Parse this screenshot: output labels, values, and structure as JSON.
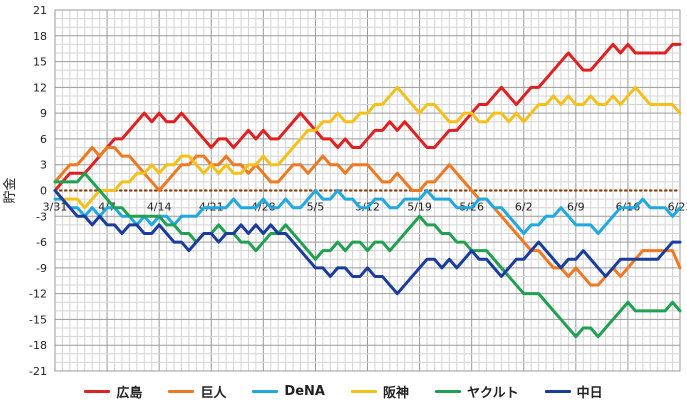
{
  "chart_data": {
    "type": "line",
    "ylabel": "貯金",
    "ylim": [
      -21,
      21
    ],
    "yticks": [
      21,
      18,
      15,
      12,
      9,
      6,
      3,
      0,
      -3,
      -6,
      -9,
      -12,
      -15,
      -18,
      -21
    ],
    "xlim": [
      0,
      84
    ],
    "xticks": [
      {
        "x": 0,
        "label": "3/31"
      },
      {
        "x": 7,
        "label": "4/7"
      },
      {
        "x": 14,
        "label": "4/14"
      },
      {
        "x": 21,
        "label": "4/21"
      },
      {
        "x": 28,
        "label": "4/28"
      },
      {
        "x": 35,
        "label": "5/5"
      },
      {
        "x": 42,
        "label": "5/12"
      },
      {
        "x": 49,
        "label": "5/19"
      },
      {
        "x": 56,
        "label": "5/26"
      },
      {
        "x": 63,
        "label": "6/2"
      },
      {
        "x": 70,
        "label": "6/9"
      },
      {
        "x": 77,
        "label": "6/16"
      },
      {
        "x": 84,
        "label": "6/23"
      }
    ],
    "series": [
      {
        "name": "広島",
        "color": "#e02020",
        "values": [
          0,
          1,
          2,
          2,
          2,
          3,
          4,
          5,
          6,
          6,
          7,
          8,
          9,
          8,
          9,
          8,
          8,
          9,
          8,
          7,
          6,
          5,
          6,
          6,
          5,
          6,
          7,
          6,
          7,
          6,
          6,
          7,
          8,
          9,
          8,
          7,
          6,
          6,
          5,
          6,
          5,
          5,
          6,
          7,
          7,
          8,
          7,
          8,
          7,
          6,
          5,
          5,
          6,
          7,
          7,
          8,
          9,
          10,
          10,
          11,
          12,
          11,
          10,
          11,
          12,
          12,
          13,
          14,
          15,
          16,
          15,
          14,
          14,
          15,
          16,
          17,
          16,
          17,
          16,
          16,
          16,
          16,
          16,
          17,
          17
        ]
      },
      {
        "name": "巨人",
        "color": "#f07820",
        "values": [
          1,
          2,
          3,
          3,
          4,
          5,
          4,
          5,
          5,
          4,
          4,
          3,
          2,
          1,
          0,
          1,
          2,
          3,
          3,
          4,
          4,
          3,
          3,
          4,
          3,
          3,
          2,
          3,
          2,
          1,
          1,
          2,
          3,
          3,
          2,
          3,
          4,
          3,
          3,
          2,
          3,
          3,
          3,
          2,
          1,
          1,
          2,
          1,
          0,
          0,
          1,
          1,
          2,
          3,
          2,
          1,
          0,
          -1,
          -1,
          -2,
          -3,
          -4,
          -5,
          -6,
          -7,
          -7,
          -8,
          -9,
          -9,
          -10,
          -9,
          -10,
          -11,
          -11,
          -10,
          -9,
          -10,
          -9,
          -8,
          -7,
          -7,
          -7,
          -7,
          -7,
          -9
        ]
      },
      {
        "name": "DeNA",
        "color": "#20a8e0",
        "values": [
          -1,
          -1,
          -2,
          -2,
          -3,
          -2,
          -3,
          -2,
          -2,
          -3,
          -3,
          -4,
          -3,
          -4,
          -3,
          -3,
          -4,
          -3,
          -3,
          -3,
          -2,
          -2,
          -2,
          -2,
          -1,
          -2,
          -2,
          -2,
          -1,
          -2,
          -2,
          -1,
          -2,
          -2,
          -1,
          0,
          -1,
          -1,
          0,
          -1,
          -1,
          -2,
          -2,
          -1,
          -1,
          -2,
          -2,
          -1,
          -1,
          -1,
          0,
          -1,
          -1,
          -1,
          -2,
          -2,
          -2,
          -1,
          -1,
          -2,
          -2,
          -3,
          -4,
          -5,
          -4,
          -4,
          -3,
          -3,
          -2,
          -3,
          -4,
          -4,
          -4,
          -5,
          -4,
          -3,
          -2,
          -2,
          -2,
          -1,
          -2,
          -2,
          -2,
          -3,
          -2
        ]
      },
      {
        "name": "阪神",
        "color": "#f5c018",
        "values": [
          0,
          -1,
          -1,
          -1,
          -2,
          -1,
          0,
          0,
          0,
          1,
          1,
          2,
          2,
          3,
          2,
          3,
          3,
          4,
          4,
          3,
          2,
          3,
          2,
          3,
          2,
          2,
          3,
          3,
          4,
          3,
          3,
          4,
          5,
          6,
          7,
          7,
          8,
          8,
          9,
          8,
          8,
          9,
          9,
          10,
          10,
          11,
          12,
          11,
          10,
          9,
          10,
          10,
          9,
          8,
          8,
          9,
          9,
          8,
          8,
          9,
          9,
          8,
          9,
          8,
          9,
          10,
          10,
          11,
          10,
          11,
          10,
          10,
          11,
          10,
          10,
          11,
          10,
          11,
          12,
          11,
          10,
          10,
          10,
          10,
          9
        ]
      },
      {
        "name": "ヤクルト",
        "color": "#20a050",
        "values": [
          1,
          1,
          1,
          1,
          2,
          1,
          0,
          -1,
          -2,
          -2,
          -3,
          -3,
          -3,
          -3,
          -3,
          -4,
          -4,
          -5,
          -5,
          -6,
          -5,
          -5,
          -4,
          -5,
          -5,
          -6,
          -6,
          -7,
          -6,
          -5,
          -5,
          -4,
          -5,
          -6,
          -7,
          -8,
          -7,
          -7,
          -6,
          -7,
          -6,
          -6,
          -7,
          -6,
          -6,
          -7,
          -6,
          -5,
          -4,
          -3,
          -4,
          -4,
          -5,
          -5,
          -6,
          -6,
          -7,
          -7,
          -7,
          -8,
          -9,
          -10,
          -11,
          -12,
          -12,
          -12,
          -13,
          -14,
          -15,
          -16,
          -17,
          -16,
          -16,
          -17,
          -16,
          -15,
          -14,
          -13,
          -14,
          -14,
          -14,
          -14,
          -14,
          -13,
          -14
        ]
      },
      {
        "name": "中日",
        "color": "#1a3c9c",
        "values": [
          0,
          -1,
          -2,
          -3,
          -3,
          -4,
          -3,
          -4,
          -4,
          -5,
          -4,
          -4,
          -5,
          -5,
          -4,
          -5,
          -6,
          -6,
          -7,
          -6,
          -5,
          -5,
          -6,
          -5,
          -5,
          -4,
          -5,
          -4,
          -5,
          -4,
          -5,
          -5,
          -6,
          -7,
          -8,
          -9,
          -9,
          -10,
          -9,
          -9,
          -10,
          -10,
          -9,
          -10,
          -10,
          -11,
          -12,
          -11,
          -10,
          -9,
          -8,
          -8,
          -9,
          -8,
          -9,
          -8,
          -7,
          -8,
          -8,
          -9,
          -10,
          -9,
          -8,
          -8,
          -7,
          -6,
          -7,
          -8,
          -9,
          -8,
          -8,
          -7,
          -8,
          -9,
          -10,
          -9,
          -8,
          -8,
          -8,
          -8,
          -8,
          -8,
          -7,
          -6,
          -6
        ]
      }
    ]
  }
}
